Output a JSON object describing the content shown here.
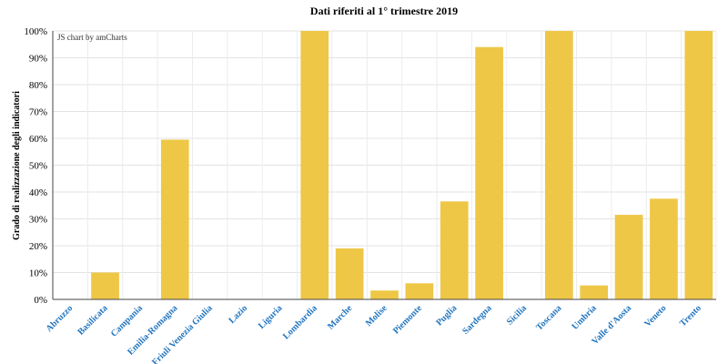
{
  "chart_data": {
    "type": "bar",
    "title": "",
    "subtitle": "Dati riferiti al 1° trimestre 2019",
    "credit": "JS chart by amCharts",
    "ylabel": "Grado di realizzazione degli indicatori",
    "xlabel": "",
    "ylim": [
      0,
      100
    ],
    "yticks": [
      "0%",
      "10%",
      "20%",
      "30%",
      "40%",
      "50%",
      "60%",
      "70%",
      "80%",
      "90%",
      "100%"
    ],
    "grid": true,
    "categories": [
      "Abruzzo",
      "Basilicata",
      "Campania",
      "Emilia-Romagna",
      "Friuli Venezia Giulia",
      "Lazio",
      "Liguria",
      "Lombardia",
      "Marche",
      "Molise",
      "Piemonte",
      "Puglia",
      "Sardegna",
      "Sicilia",
      "Toscana",
      "Umbria",
      "Valle d'Aosta",
      "Veneto",
      "Trento"
    ],
    "values": [
      0,
      10,
      0,
      59.5,
      0,
      0,
      0,
      100,
      19,
      3.3,
      6,
      36.5,
      94,
      0,
      100,
      5.2,
      31.5,
      37.5,
      100
    ],
    "bar_color": "#EEC746",
    "tick_label_color": "#1E73BE"
  }
}
